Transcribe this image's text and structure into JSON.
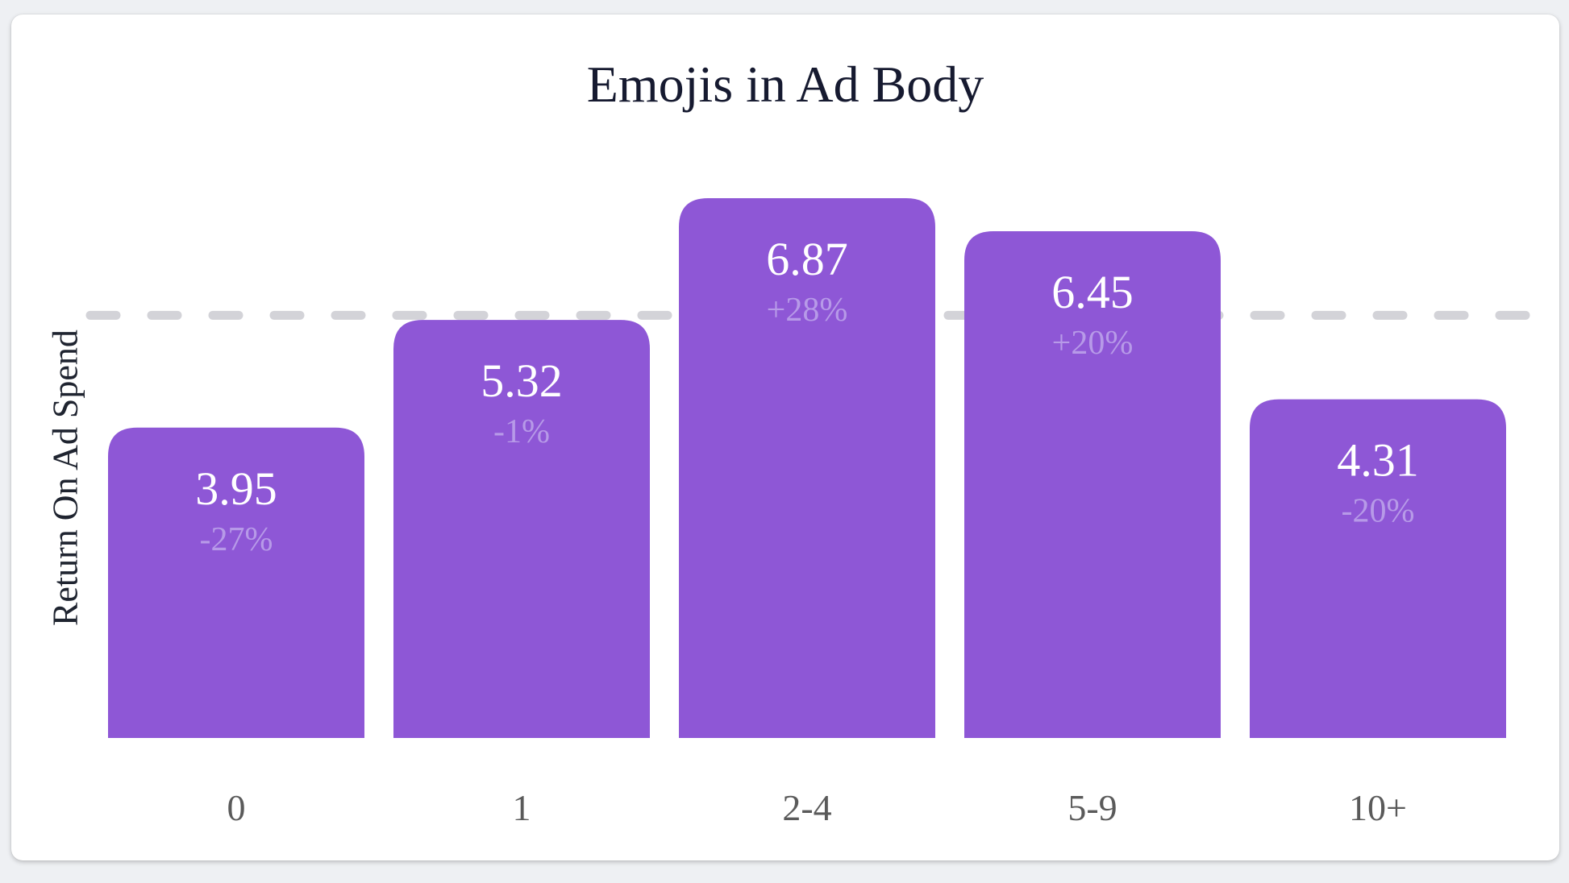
{
  "chart_data": {
    "type": "bar",
    "title": "Emojis in Ad Body",
    "ylabel": "Return On Ad Spend",
    "xlabel": "",
    "categories": [
      "0",
      "1",
      "2-4",
      "5-9",
      "10+"
    ],
    "values": [
      3.95,
      5.32,
      6.87,
      6.45,
      4.31
    ],
    "change_labels": [
      "-27%",
      "-1%",
      "+28%",
      "+20%",
      "-20%"
    ],
    "reference_line": 5.38,
    "ylim": [
      0,
      6.87
    ],
    "grid": false,
    "colors": {
      "bar": "#8e57d6",
      "value_text": "#ffffff",
      "change_text": "#b79ae8",
      "reference_line": "#d3d3d8",
      "tick_text": "#5a5a5a"
    }
  }
}
